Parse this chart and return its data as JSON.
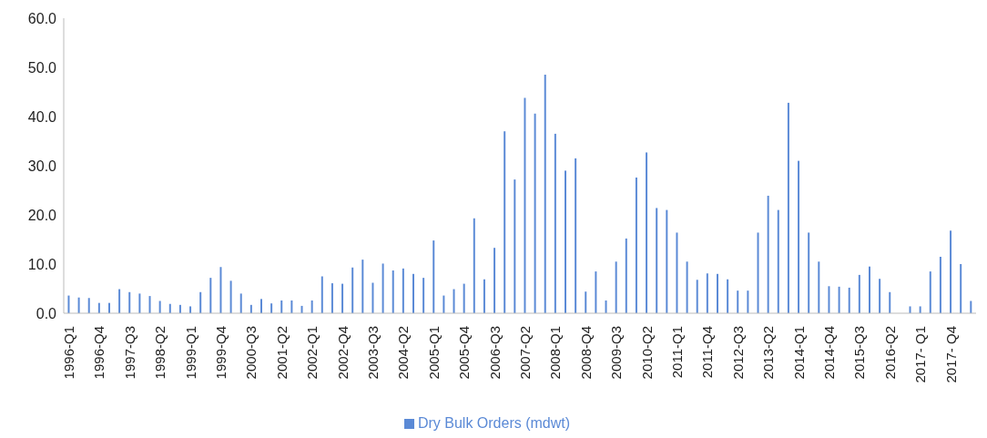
{
  "chart_data": {
    "type": "bar",
    "categories": [
      "1996-Q1",
      null,
      null,
      "1996-Q4",
      null,
      null,
      "1997-Q3",
      null,
      null,
      "1998-Q2",
      null,
      null,
      "1999-Q1",
      null,
      null,
      "1999-Q4",
      null,
      null,
      "2000-Q3",
      null,
      null,
      "2001-Q2",
      null,
      null,
      "2002-Q1",
      null,
      null,
      "2002-Q4",
      null,
      null,
      "2003-Q3",
      null,
      null,
      "2004-Q2",
      null,
      null,
      "2005-Q1",
      null,
      null,
      "2005-Q4",
      null,
      null,
      "2006-Q3",
      null,
      null,
      "2007-Q2",
      null,
      null,
      "2008-Q1",
      null,
      null,
      "2008-Q4",
      null,
      null,
      "2009-Q3",
      null,
      null,
      "2010-Q2",
      null,
      null,
      "2011-Q1",
      null,
      null,
      "2011-Q4",
      null,
      null,
      "2012-Q3",
      null,
      null,
      "2013-Q2",
      null,
      null,
      "2014-Q1",
      null,
      null,
      "2014-Q4",
      null,
      null,
      "2015-Q3",
      null,
      null,
      "2016-Q2",
      null,
      null,
      "2017- Q1",
      null,
      null,
      "2017- Q4",
      null,
      null
    ],
    "series": [
      {
        "name": "Dry Bulk Orders (mdwt)",
        "color": "#5b8ad6",
        "values": [
          3.6,
          3.2,
          3.1,
          2.1,
          2.1,
          4.9,
          4.3,
          4.0,
          3.5,
          2.5,
          1.9,
          1.7,
          1.4,
          4.3,
          7.2,
          9.4,
          6.6,
          4.0,
          1.7,
          2.9,
          2.0,
          2.6,
          2.6,
          1.5,
          2.6,
          7.5,
          6.1,
          6.0,
          9.3,
          10.9,
          6.2,
          10.1,
          8.7,
          9.1,
          8.0,
          7.2,
          14.8,
          3.6,
          4.9,
          6.0,
          19.3,
          6.9,
          13.3,
          37.0,
          27.2,
          43.8,
          40.6,
          48.5,
          36.5,
          29.0,
          31.5,
          4.4,
          8.5,
          2.6,
          10.5,
          15.2,
          27.6,
          32.7,
          21.4,
          21.0,
          16.4,
          10.5,
          6.8,
          8.1,
          8.0,
          6.9,
          4.6,
          4.6,
          16.4,
          23.9,
          21.0,
          42.8,
          31.0,
          16.4,
          10.5,
          5.5,
          5.4,
          5.2,
          7.8,
          9.5,
          7.0,
          4.3,
          null,
          1.4,
          1.4,
          8.5,
          11.5,
          16.8,
          10.0,
          2.5
        ]
      }
    ],
    "ylim": [
      0,
      60
    ],
    "yticks": [
      {
        "value": 0,
        "label": "0.0"
      },
      {
        "value": 10,
        "label": "10.0"
      },
      {
        "value": 20,
        "label": "20.0"
      },
      {
        "value": 30,
        "label": "30.0"
      },
      {
        "value": 40,
        "label": "40.0"
      },
      {
        "value": 50,
        "label": "50.0"
      },
      {
        "value": 60,
        "label": "60.0"
      }
    ],
    "grid": false,
    "legend": "bottom"
  }
}
